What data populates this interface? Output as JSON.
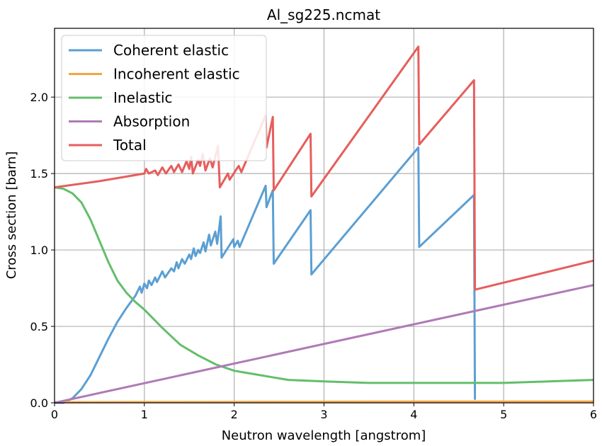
{
  "chart_data": {
    "type": "line",
    "title": "Al_sg225.ncmat",
    "xlabel": "Neutron wavelength [angstrom]",
    "ylabel": "Cross section [barn]",
    "xlim": [
      0,
      6
    ],
    "ylim": [
      0,
      2.45
    ],
    "xticks": [
      0,
      1,
      2,
      3,
      4,
      5,
      6
    ],
    "xtick_labels": [
      "0",
      "1",
      "2",
      "3",
      "4",
      "5",
      "6"
    ],
    "yticks": [
      0.0,
      0.5,
      1.0,
      1.5,
      2.0
    ],
    "ytick_labels": [
      "0.0",
      "0.5",
      "1.0",
      "1.5",
      "2.0"
    ],
    "grid": true,
    "legend_position": "top-left",
    "series": [
      {
        "name": "Coherent elastic",
        "color": "#5b9fd3",
        "points": [
          [
            0.0,
            0.0
          ],
          [
            0.1,
            0.0
          ],
          [
            0.2,
            0.03
          ],
          [
            0.3,
            0.09
          ],
          [
            0.4,
            0.18
          ],
          [
            0.5,
            0.3
          ],
          [
            0.6,
            0.42
          ],
          [
            0.7,
            0.53
          ],
          [
            0.8,
            0.62
          ],
          [
            0.9,
            0.7
          ],
          [
            0.95,
            0.76
          ],
          [
            0.97,
            0.72
          ],
          [
            1.0,
            0.78
          ],
          [
            1.03,
            0.75
          ],
          [
            1.05,
            0.8
          ],
          [
            1.08,
            0.77
          ],
          [
            1.12,
            0.82
          ],
          [
            1.14,
            0.79
          ],
          [
            1.2,
            0.86
          ],
          [
            1.23,
            0.82
          ],
          [
            1.3,
            0.88
          ],
          [
            1.33,
            0.86
          ],
          [
            1.36,
            0.92
          ],
          [
            1.38,
            0.88
          ],
          [
            1.42,
            0.94
          ],
          [
            1.45,
            0.91
          ],
          [
            1.5,
            0.97
          ],
          [
            1.52,
            0.94
          ],
          [
            1.55,
            1.01
          ],
          [
            1.57,
            0.96
          ],
          [
            1.6,
            1.0
          ],
          [
            1.62,
            0.98
          ],
          [
            1.66,
            1.05
          ],
          [
            1.68,
            0.99
          ],
          [
            1.72,
            1.1
          ],
          [
            1.74,
            1.03
          ],
          [
            1.79,
            1.12
          ],
          [
            1.81,
            1.04
          ],
          [
            1.85,
            1.22
          ],
          [
            1.86,
            0.95
          ],
          [
            1.99,
            1.07
          ],
          [
            2.0,
            1.02
          ],
          [
            2.04,
            1.06
          ],
          [
            2.06,
            1.02
          ],
          [
            2.35,
            1.42
          ],
          [
            2.36,
            1.28
          ],
          [
            2.43,
            1.39
          ],
          [
            2.44,
            0.91
          ],
          [
            2.85,
            1.26
          ],
          [
            2.86,
            0.84
          ],
          [
            4.05,
            1.67
          ],
          [
            4.06,
            1.02
          ],
          [
            4.67,
            1.36
          ],
          [
            4.68,
            0.02
          ]
        ]
      },
      {
        "name": "Incoherent elastic",
        "color": "#f5a442",
        "points": [
          [
            0.0,
            0.004
          ],
          [
            1.0,
            0.005
          ],
          [
            2.0,
            0.006
          ],
          [
            3.0,
            0.007
          ],
          [
            4.0,
            0.008
          ],
          [
            5.0,
            0.008
          ],
          [
            6.0,
            0.009
          ]
        ]
      },
      {
        "name": "Inelastic",
        "color": "#63be6b",
        "points": [
          [
            0.0,
            1.41
          ],
          [
            0.1,
            1.4
          ],
          [
            0.2,
            1.37
          ],
          [
            0.3,
            1.31
          ],
          [
            0.4,
            1.2
          ],
          [
            0.5,
            1.06
          ],
          [
            0.6,
            0.92
          ],
          [
            0.7,
            0.8
          ],
          [
            0.8,
            0.72
          ],
          [
            0.9,
            0.66
          ],
          [
            1.0,
            0.61
          ],
          [
            1.2,
            0.49
          ],
          [
            1.4,
            0.38
          ],
          [
            1.6,
            0.31
          ],
          [
            1.8,
            0.25
          ],
          [
            2.0,
            0.21
          ],
          [
            2.2,
            0.19
          ],
          [
            2.4,
            0.17
          ],
          [
            2.6,
            0.15
          ],
          [
            3.0,
            0.14
          ],
          [
            3.5,
            0.13
          ],
          [
            4.0,
            0.13
          ],
          [
            4.5,
            0.13
          ],
          [
            5.0,
            0.13
          ],
          [
            5.5,
            0.14
          ],
          [
            6.0,
            0.15
          ]
        ]
      },
      {
        "name": "Absorption",
        "color": "#b07ab6",
        "points": [
          [
            0.0,
            0.0
          ],
          [
            6.0,
            0.77
          ]
        ]
      },
      {
        "name": "Total",
        "color": "#e55e5c",
        "points": [
          [
            0.0,
            1.41
          ],
          [
            0.5,
            1.45
          ],
          [
            1.0,
            1.5
          ],
          [
            1.02,
            1.53
          ],
          [
            1.05,
            1.5
          ],
          [
            1.12,
            1.52
          ],
          [
            1.15,
            1.49
          ],
          [
            1.2,
            1.54
          ],
          [
            1.24,
            1.5
          ],
          [
            1.3,
            1.55
          ],
          [
            1.33,
            1.51
          ],
          [
            1.38,
            1.56
          ],
          [
            1.42,
            1.51
          ],
          [
            1.47,
            1.58
          ],
          [
            1.5,
            1.53
          ],
          [
            1.52,
            1.61
          ],
          [
            1.54,
            1.5
          ],
          [
            1.6,
            1.59
          ],
          [
            1.62,
            1.55
          ],
          [
            1.65,
            1.63
          ],
          [
            1.68,
            1.52
          ],
          [
            1.73,
            1.6
          ],
          [
            1.76,
            1.54
          ],
          [
            1.82,
            1.68
          ],
          [
            1.84,
            1.41
          ],
          [
            1.93,
            1.5
          ],
          [
            1.95,
            1.46
          ],
          [
            2.05,
            1.55
          ],
          [
            2.08,
            1.51
          ],
          [
            2.35,
            1.88
          ],
          [
            2.36,
            1.67
          ],
          [
            2.43,
            1.87
          ],
          [
            2.44,
            1.39
          ],
          [
            2.85,
            1.76
          ],
          [
            2.86,
            1.35
          ],
          [
            4.05,
            2.33
          ],
          [
            4.06,
            1.69
          ],
          [
            4.67,
            2.11
          ],
          [
            4.68,
            0.74
          ],
          [
            6.0,
            0.93
          ]
        ]
      }
    ]
  }
}
